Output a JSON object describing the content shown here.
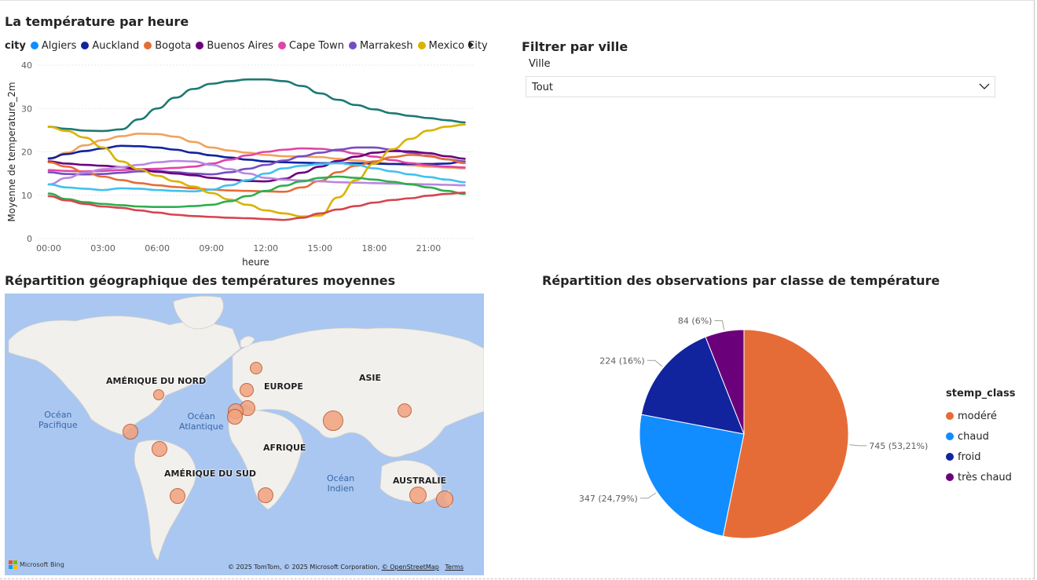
{
  "line_chart": {
    "title": "La température par heure",
    "legend_title": "city",
    "legend_items": [
      {
        "name": "Algiers",
        "color": "#118DFF"
      },
      {
        "name": "Auckland",
        "color": "#12239E"
      },
      {
        "name": "Bogota",
        "color": "#E66C37"
      },
      {
        "name": "Buenos Aires",
        "color": "#6B007B"
      },
      {
        "name": "Cape Town",
        "color": "#E044A7"
      },
      {
        "name": "Marrakesh",
        "color": "#744EC2"
      },
      {
        "name": "Mexico City",
        "color": "#D9B300"
      }
    ],
    "ylabel": "Moyenne de temperature_2m",
    "xlabel": "heure"
  },
  "chart_data": [
    {
      "type": "line",
      "xlabel": "heure",
      "ylabel": "Moyenne de temperature_2m",
      "ylim": [
        0,
        40
      ],
      "yticks": [
        "0",
        "10",
        "20",
        "30",
        "40"
      ],
      "x_tick_labels": [
        "00:00",
        "03:00",
        "06:00",
        "09:00",
        "12:00",
        "15:00",
        "18:00",
        "21:00"
      ],
      "x": [
        0,
        1,
        2,
        3,
        4,
        5,
        6,
        7,
        8,
        9,
        10,
        11,
        12,
        13,
        14,
        15,
        16,
        17,
        18,
        19,
        20,
        21,
        22,
        23
      ],
      "series": [
        {
          "color": "#1D7A73",
          "values": [
            25.8,
            25.3,
            24.9,
            24.8,
            25.2,
            27.5,
            30.0,
            32.5,
            34.5,
            35.7,
            36.3,
            36.7,
            36.7,
            36.3,
            35.2,
            33.5,
            32.0,
            30.8,
            29.8,
            28.9,
            28.3,
            27.8,
            27.3,
            26.8
          ]
        },
        {
          "color": "#F2A25C",
          "values": [
            18.3,
            19.8,
            21.5,
            22.7,
            23.6,
            24.2,
            24.1,
            23.5,
            22.3,
            21.0,
            20.3,
            19.8,
            19.3,
            19.0,
            18.9,
            18.8,
            18.4,
            18.0,
            17.6,
            17.2,
            16.9,
            16.6,
            16.4,
            16.2
          ]
        },
        {
          "color": "#12239E",
          "values": [
            18.5,
            19.5,
            20.2,
            20.8,
            21.4,
            21.3,
            21.0,
            20.5,
            19.8,
            19.2,
            18.7,
            18.2,
            17.8,
            17.6,
            17.5,
            17.4,
            17.4,
            17.4,
            17.3,
            17.2,
            17.2,
            17.2,
            17.3,
            17.8
          ]
        },
        {
          "color": "#E044A7",
          "values": [
            15.8,
            15.6,
            15.5,
            15.6,
            15.8,
            16.0,
            16.1,
            16.3,
            16.6,
            17.3,
            18.2,
            19.2,
            20.0,
            20.5,
            20.8,
            20.7,
            20.3,
            19.6,
            18.9,
            18.1,
            17.4,
            16.9,
            16.6,
            16.4
          ]
        },
        {
          "color": "#744EC2",
          "values": [
            15.3,
            14.9,
            14.8,
            14.9,
            15.2,
            15.5,
            15.6,
            15.3,
            15.0,
            14.8,
            15.3,
            16.1,
            17.0,
            18.0,
            19.0,
            19.8,
            20.5,
            21.0,
            21.0,
            20.5,
            19.8,
            19.0,
            18.3,
            17.8
          ]
        },
        {
          "color": "#6B007B",
          "values": [
            17.8,
            17.3,
            17.0,
            16.8,
            16.5,
            16.0,
            15.4,
            15.0,
            14.6,
            14.0,
            13.6,
            13.3,
            13.2,
            13.8,
            15.2,
            16.6,
            17.9,
            18.9,
            19.8,
            20.2,
            20.1,
            19.7,
            19.0,
            18.4
          ]
        },
        {
          "color": "#E66C37",
          "values": [
            17.6,
            16.6,
            15.3,
            14.3,
            13.5,
            12.8,
            12.3,
            11.9,
            11.6,
            11.3,
            11.1,
            11.0,
            10.9,
            10.8,
            11.8,
            13.3,
            15.3,
            16.8,
            17.8,
            18.8,
            19.3,
            19.1,
            18.3,
            17.4
          ]
        },
        {
          "color": "#B887E0",
          "values": [
            12.5,
            14.0,
            15.2,
            16.0,
            16.5,
            17.0,
            17.6,
            17.9,
            17.8,
            17.0,
            16.0,
            15.0,
            14.0,
            13.6,
            13.4,
            13.2,
            13.0,
            12.9,
            12.8,
            12.7,
            12.6,
            12.5,
            12.4,
            12.3
          ]
        },
        {
          "color": "#40C1F0",
          "values": [
            12.5,
            11.8,
            11.5,
            11.2,
            11.6,
            11.5,
            11.2,
            11.0,
            10.9,
            11.3,
            12.3,
            13.5,
            15.0,
            16.2,
            16.8,
            17.2,
            17.4,
            17.0,
            16.2,
            15.5,
            14.8,
            14.2,
            13.6,
            13.0
          ]
        },
        {
          "color": "#D9B300",
          "values": [
            25.8,
            24.8,
            23.3,
            21.0,
            17.8,
            16.0,
            14.5,
            13.2,
            12.0,
            10.5,
            9.0,
            7.8,
            6.5,
            5.8,
            5.1,
            5.3,
            9.5,
            13.5,
            17.3,
            20.6,
            23.0,
            24.9,
            25.8,
            26.3
          ]
        },
        {
          "color": "#2FAE4E",
          "values": [
            10.4,
            9.1,
            8.4,
            8.0,
            7.7,
            7.4,
            7.3,
            7.3,
            7.5,
            7.8,
            8.6,
            9.8,
            11.0,
            12.2,
            13.2,
            14.0,
            14.3,
            14.0,
            13.6,
            13.1,
            12.5,
            11.8,
            11.0,
            10.3
          ]
        },
        {
          "color": "#D64550",
          "values": [
            9.8,
            8.8,
            8.0,
            7.4,
            7.1,
            6.5,
            6.0,
            5.5,
            5.2,
            5.0,
            4.8,
            4.7,
            4.5,
            4.3,
            4.8,
            5.8,
            6.7,
            7.5,
            8.3,
            8.9,
            9.3,
            9.9,
            10.3,
            10.6
          ]
        }
      ]
    },
    {
      "type": "pie",
      "title": "Répartition des observations par classe de température",
      "legend_title": "stemp_class",
      "slices": [
        {
          "label": "modéré",
          "value": 745,
          "display": "745 (53,21%)",
          "color": "#E66C37"
        },
        {
          "label": "chaud",
          "value": 347,
          "display": "347 (24,79%)",
          "color": "#118DFF"
        },
        {
          "label": "froid",
          "value": 224,
          "display": "224 (16%)",
          "color": "#12239E"
        },
        {
          "label": "très chaud",
          "value": 84,
          "display": "84 (6%)",
          "color": "#6B007B"
        }
      ]
    }
  ],
  "slicer": {
    "title": "Filtrer par ville",
    "label": "Ville",
    "value": "Tout",
    "icon": "chevron-down-icon"
  },
  "map": {
    "title": "Répartition géographique des températures moyennes",
    "continents": [
      "AMÉRIQUE DU NORD",
      "EUROPE",
      "ASIE",
      "AFRIQUE",
      "AMÉRIQUE DU SUD",
      "AUSTRALIE"
    ],
    "oceans": [
      "Océan\nPacifique",
      "Océan\nAtlantique",
      "Océan\nIndien"
    ],
    "credit": "© 2025 TomTom, © 2025 Microsoft Corporation,",
    "credit_link": "© OpenStreetMap",
    "terms": "Terms",
    "bing": "Microsoft Bing",
    "bubble_color": "#F2A27E"
  }
}
